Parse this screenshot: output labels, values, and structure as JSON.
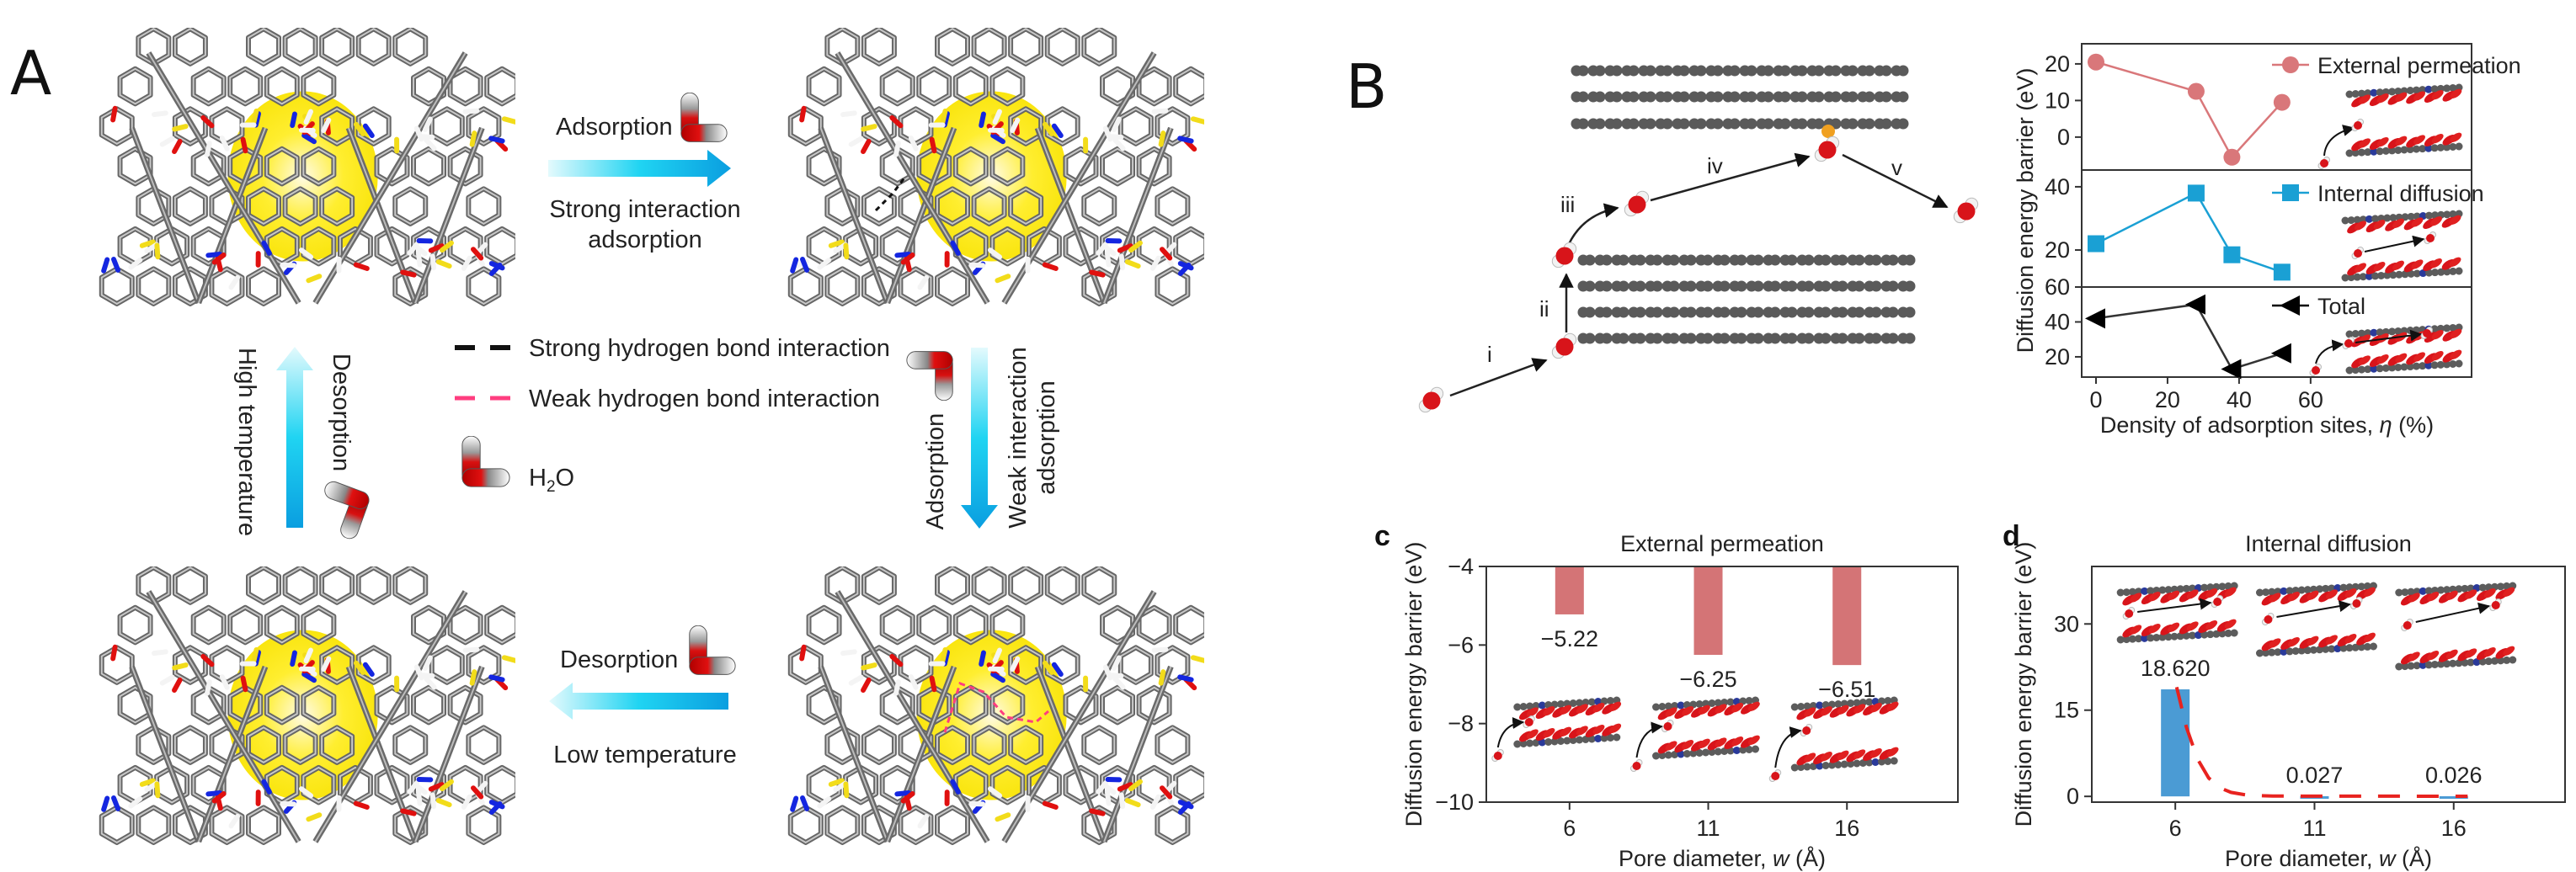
{
  "panel_a": {
    "label": "A",
    "top_arrow": {
      "label": "Adsorption",
      "caption_line1": "Strong interaction",
      "caption_line2": "adsorption"
    },
    "right_arrow": {
      "label": "Adsorption",
      "caption_line1": "Weak interaction",
      "caption_line2": "adsorption"
    },
    "bottom_arrow": {
      "label": "Desorption",
      "caption": "Low temperature"
    },
    "left_arrow": {
      "label": "Desorption",
      "caption": "High temperature"
    },
    "legend": {
      "strong": "Strong hydrogen bond interaction",
      "weak": "Weak hydrogen bond interaction",
      "water_main": "H",
      "water_sub": "2",
      "water_end": "O"
    },
    "colors": {
      "pore": "#ffe800",
      "arrow": "#0aa0e0",
      "strong_bond": "#111111",
      "weak_bond": "#ff3d7f",
      "oxygen": "#e0100f",
      "nitrogen": "#1426e0",
      "sulfur": "#f2dc1a",
      "carbon": "#6d6d6d"
    }
  },
  "panel_b": {
    "label": "B",
    "steps": [
      "i",
      "ii",
      "iii",
      "iv",
      "v"
    ],
    "colors": {
      "layer": "#5a5a5a",
      "site": "#f0a020"
    }
  },
  "panel_c": {
    "label": "c"
  },
  "panel_d": {
    "label": "d"
  },
  "chart_data": [
    {
      "type": "line",
      "xlabel_prefix": "Density of adsorption sites, ",
      "xlabel_var": "η",
      "xlabel_suffix": " (%)",
      "ylabel": "Diffusion energy barrier (eV)",
      "x": [
        0,
        28,
        38,
        52
      ],
      "xlim": [
        -4,
        105
      ],
      "xticks": [
        0,
        20,
        40,
        60
      ],
      "grid": false,
      "legend": "top-right",
      "panels": [
        {
          "series": {
            "name": "External permeation",
            "values": [
              20.5,
              12.5,
              -5.5,
              9.5
            ],
            "marker": "circle",
            "color": "#d9777a"
          },
          "ylim": [
            -9,
            25.5
          ],
          "yticks": [
            0,
            10,
            20
          ]
        },
        {
          "series": {
            "name": "Internal diffusion",
            "values": [
              22,
              38,
              18.5,
              13
            ],
            "marker": "square",
            "color": "#1aa0d4"
          },
          "ylim": [
            8.3,
            45.3
          ],
          "yticks": [
            20,
            40
          ]
        },
        {
          "series": {
            "name": "Total",
            "values": [
              42,
              50,
              13,
              22
            ],
            "marker": "triangle-left",
            "color": "#000000"
          },
          "ylim": [
            8.4,
            60
          ],
          "yticks": [
            20,
            40,
            60
          ]
        }
      ]
    },
    {
      "type": "bar",
      "title": "External permeation",
      "xlabel_prefix": "Pore diameter, ",
      "xlabel_var": "w",
      "xlabel_suffix": " (Å)",
      "ylabel": "Diffusion energy barrier (eV)",
      "categories": [
        "6",
        "11",
        "16"
      ],
      "x": [
        6,
        11,
        16
      ],
      "values": [
        -5.22,
        -6.25,
        -6.51
      ],
      "value_labels": [
        "−5.22",
        "−6.25",
        "−6.51"
      ],
      "xlim": [
        3,
        20
      ],
      "ylim": [
        -10,
        -4
      ],
      "yticks": [
        -4,
        -6,
        -8,
        -10
      ],
      "ytick_labels": [
        "−4",
        "−6",
        "−8",
        "−10"
      ],
      "bar_color": "#d47476",
      "grid": false
    },
    {
      "type": "bar",
      "title": "Internal diffusion",
      "xlabel_prefix": "Pore diameter, ",
      "xlabel_var": "w",
      "xlabel_suffix": " (Å)",
      "ylabel": "Diffusion energy barrier (eV)",
      "categories": [
        "6",
        "11",
        "16"
      ],
      "x": [
        6,
        11,
        16
      ],
      "values": [
        18.62,
        0.027,
        0.026
      ],
      "value_labels": [
        "18.620",
        "0.027",
        "0.026"
      ],
      "xlim": [
        3,
        20
      ],
      "ylim": [
        -1,
        40
      ],
      "yticks": [
        0,
        15,
        30
      ],
      "ytick_labels": [
        "0",
        "15",
        "30"
      ],
      "bar_color": "#4b9bd4",
      "fit": {
        "x": [
          6.05,
          6.4,
          6.8,
          7.2,
          7.6,
          8.0,
          8.6,
          9.5,
          16.5
        ],
        "y": [
          19,
          12,
          6.5,
          3.2,
          1.5,
          0.7,
          0.2,
          0.05,
          0.02
        ],
        "color": "#e8231f",
        "style": "dashed"
      },
      "grid": false
    }
  ]
}
